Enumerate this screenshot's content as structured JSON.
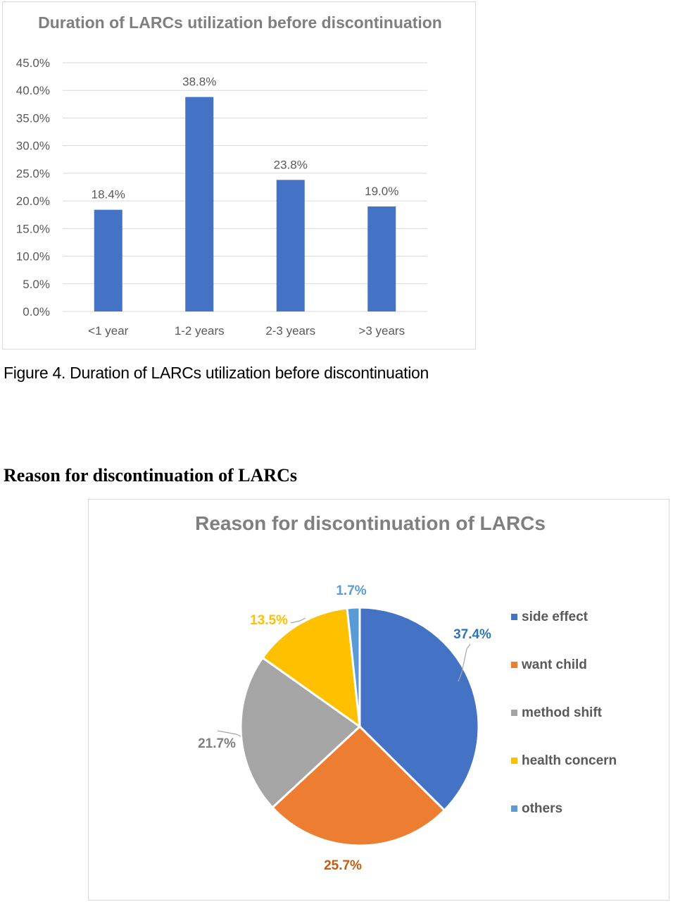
{
  "figure_caption": "Figure 4. Duration of LARCs utilization before discontinuation",
  "section_heading": "Reason for discontinuation of LARCs",
  "chart_data": [
    {
      "type": "bar",
      "title": "Duration of LARCs utilization before discontinuation",
      "categories": [
        "<1 year",
        "1-2 years",
        "2-3 years",
        ">3 years"
      ],
      "values": [
        18.4,
        38.8,
        23.8,
        19.0
      ],
      "data_labels": [
        "18.4%",
        "38.8%",
        "23.8%",
        "19.0%"
      ],
      "ylim": [
        0,
        45
      ],
      "y_ticks": [
        0,
        5,
        10,
        15,
        20,
        25,
        30,
        35,
        40,
        45
      ],
      "y_tick_labels": [
        "0.0%",
        "5.0%",
        "10.0%",
        "15.0%",
        "20.0%",
        "25.0%",
        "30.0%",
        "35.0%",
        "40.0%",
        "45.0%"
      ],
      "grid": true,
      "legend": "none",
      "bar_color": "#4472c4"
    },
    {
      "type": "pie",
      "title": "Reason for discontinuation of LARCs",
      "categories": [
        "side effect",
        "want child",
        "method shift",
        "health concern",
        "others"
      ],
      "values": [
        37.4,
        25.7,
        21.7,
        13.5,
        1.7
      ],
      "data_labels": [
        "37.4%",
        "25.7%",
        "21.7%",
        "13.5%",
        "1.7%"
      ],
      "colors": [
        "#4472c4",
        "#ed7d31",
        "#a5a5a5",
        "#ffc000",
        "#5b9bd5"
      ],
      "label_colors": [
        "#2e75b6",
        "#c55a11",
        "#7f7f7f",
        "#ffc000",
        "#5b9bd5"
      ],
      "legend": "right"
    }
  ]
}
